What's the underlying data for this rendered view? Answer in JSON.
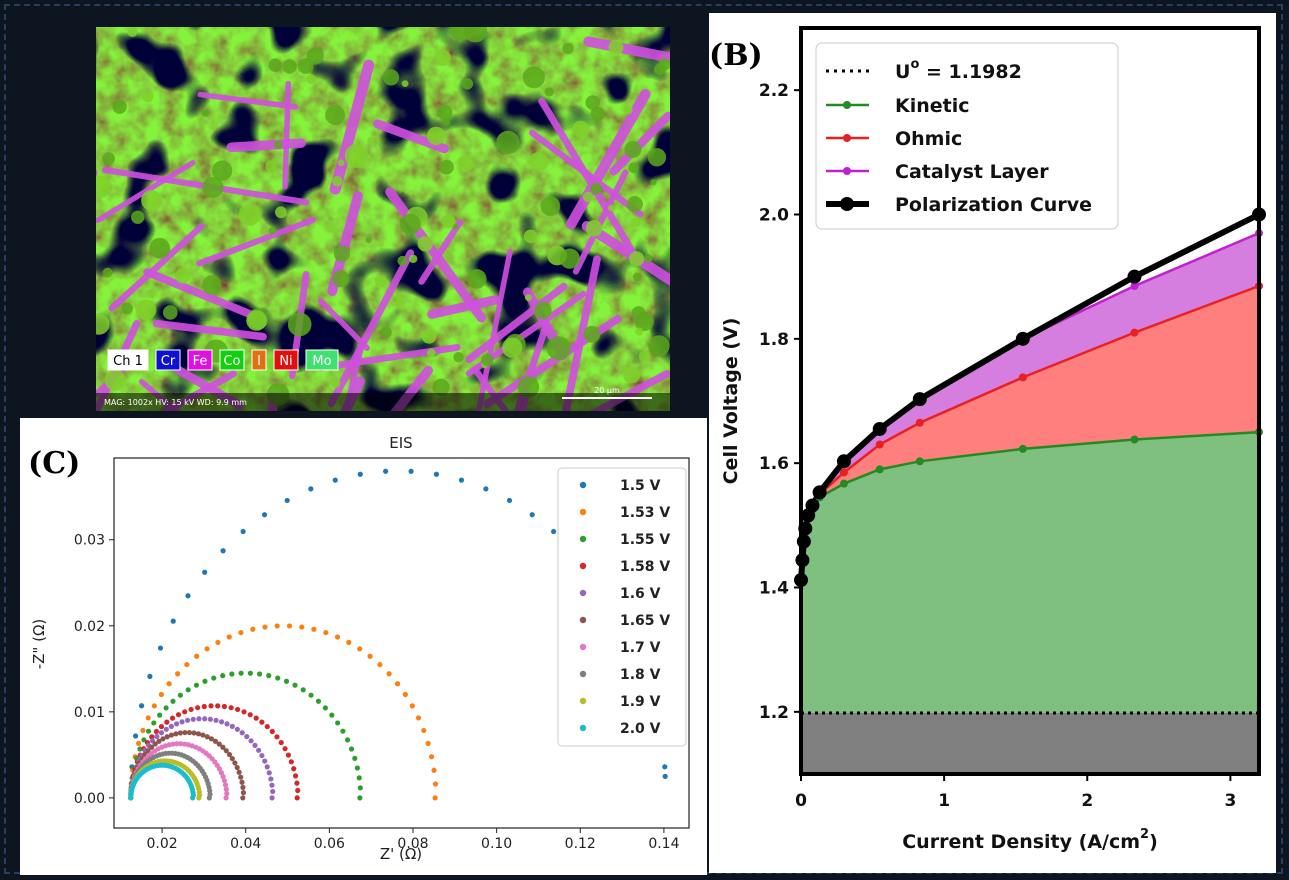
{
  "panel_a": {
    "legend": [
      {
        "label": "Ch 1",
        "color": "#ffffff",
        "text": "#000000"
      },
      {
        "label": "Cr",
        "color": "#1010d0",
        "text": "#ffffff"
      },
      {
        "label": "Fe",
        "color": "#e010e0",
        "text": "#ffffff"
      },
      {
        "label": "Co",
        "color": "#10d010",
        "text": "#ffffff"
      },
      {
        "label": "I",
        "color": "#e07010",
        "text": "#ffffff"
      },
      {
        "label": "Ni",
        "color": "#e01010",
        "text": "#ffffff"
      },
      {
        "label": "Mo",
        "color": "#40e070",
        "text": "#ffffff"
      }
    ],
    "info": "MAG: 1002x   HV: 15 kV   WD: 9.9 mm",
    "scale_label": "20 µm"
  },
  "chart_data": [
    {
      "panel_label": "(B)",
      "type": "area",
      "xlabel": "Current Density (A/cm",
      "xlabel_sup": "2",
      "xlabel_close": ")",
      "ylabel": "Cell Voltage (V)",
      "xlim": [
        0,
        3.2
      ],
      "ylim": [
        1.1,
        2.3
      ],
      "xticks": [
        "0",
        "1",
        "2",
        "3"
      ],
      "yticks": [
        "1.2",
        "1.4",
        "1.6",
        "1.8",
        "2.0",
        "2.2"
      ],
      "x": [
        0,
        0.01,
        0.02,
        0.03,
        0.05,
        0.08,
        0.13,
        0.3,
        0.55,
        0.83,
        1.55,
        2.33,
        3.2
      ],
      "U0": 1.1982,
      "series": [
        {
          "name": "Kinetic",
          "color": "#228b22",
          "values": [
            1.41,
            1.44,
            1.47,
            1.49,
            1.51,
            1.525,
            1.545,
            1.567,
            1.59,
            1.603,
            1.623,
            1.638,
            1.65
          ]
        },
        {
          "name": "Ohmic",
          "color": "#e82020",
          "values": [
            1.411,
            1.442,
            1.472,
            1.493,
            1.513,
            1.53,
            1.55,
            1.585,
            1.63,
            1.665,
            1.738,
            1.81,
            1.885
          ]
        },
        {
          "name": "Catalyst Layer",
          "color": "#c020d0",
          "values": [
            1.412,
            1.444,
            1.474,
            1.495,
            1.516,
            1.532,
            1.553,
            1.6,
            1.655,
            1.703,
            1.8,
            1.885,
            1.97
          ]
        },
        {
          "name": "Polarization Curve",
          "color": "#000000",
          "values": [
            1.412,
            1.444,
            1.474,
            1.495,
            1.516,
            1.532,
            1.553,
            1.603,
            1.655,
            1.703,
            1.8,
            1.9,
            2.0
          ]
        }
      ],
      "legend_u0_prefix": "U",
      "legend_u0_sup": "o",
      "legend_u0_suffix": " = 1.1982"
    },
    {
      "panel_label": "(C)",
      "type": "scatter",
      "title": "EIS",
      "xlabel": "Z' (Ω)",
      "ylabel": "-Z\" (Ω)",
      "xlim": [
        0.0085,
        0.146
      ],
      "ylim": [
        -0.0035,
        0.0395
      ],
      "xticks": [
        0.02,
        0.04,
        0.06,
        0.08,
        0.1,
        0.12,
        0.14
      ],
      "xtick_labels": [
        "0.02",
        "0.04",
        "0.06",
        "0.08",
        "0.10",
        "0.12",
        "0.14"
      ],
      "yticks": [
        0.0,
        0.01,
        0.02,
        0.03
      ],
      "ytick_labels": [
        "0.00",
        "0.01",
        "0.02",
        "0.03"
      ],
      "series": [
        {
          "name": "1.5 V",
          "color": "#1f77b4",
          "r0": 0.0125,
          "r1": 0.1405,
          "peak": 0.038,
          "n": 34
        },
        {
          "name": "1.53 V",
          "color": "#ff7f0e",
          "r0": 0.0125,
          "r1": 0.0855,
          "peak": 0.02,
          "n": 40
        },
        {
          "name": "1.55 V",
          "color": "#2ca02c",
          "r0": 0.0125,
          "r1": 0.0675,
          "peak": 0.0145,
          "n": 40
        },
        {
          "name": "1.58 V",
          "color": "#d62728",
          "r0": 0.0125,
          "r1": 0.0525,
          "peak": 0.0107,
          "n": 40
        },
        {
          "name": "1.6 V",
          "color": "#9467bd",
          "r0": 0.0125,
          "r1": 0.0465,
          "peak": 0.0092,
          "n": 40
        },
        {
          "name": "1.65 V",
          "color": "#8c564b",
          "r0": 0.0125,
          "r1": 0.0395,
          "peak": 0.0076,
          "n": 40
        },
        {
          "name": "1.7 V",
          "color": "#e377c2",
          "r0": 0.0125,
          "r1": 0.0355,
          "peak": 0.0063,
          "n": 40
        },
        {
          "name": "1.8 V",
          "color": "#7f7f7f",
          "r0": 0.0125,
          "r1": 0.0315,
          "peak": 0.0052,
          "n": 40
        },
        {
          "name": "1.9 V",
          "color": "#bcbd22",
          "r0": 0.0125,
          "r1": 0.029,
          "peak": 0.0043,
          "n": 40
        },
        {
          "name": "2.0 V",
          "color": "#17becf",
          "r0": 0.0125,
          "r1": 0.0275,
          "peak": 0.0038,
          "n": 40
        }
      ]
    }
  ]
}
